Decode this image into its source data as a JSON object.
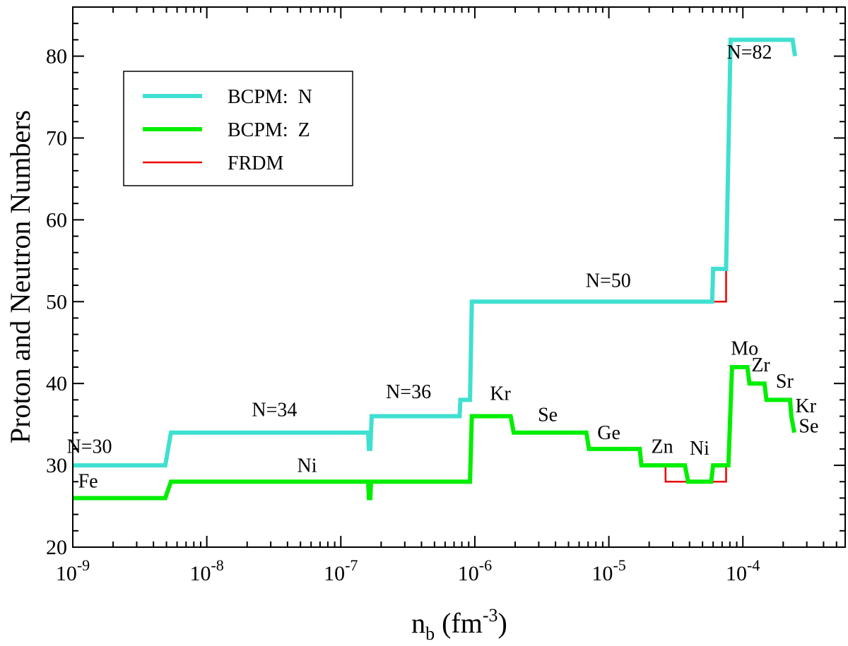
{
  "chart_data": {
    "type": "line",
    "title": "",
    "xlabel": {
      "base": "n",
      "sub": "b",
      "unit_pre": " (fm",
      "unit_sup": "-3",
      "unit_post": ")"
    },
    "ylabel": "Proton and Neutron Numbers",
    "x_scale": "log",
    "xlim": [
      1e-09,
      0.00058
    ],
    "ylim": [
      20,
      86
    ],
    "x_ticks": [
      {
        "value": 1e-09,
        "base": "10",
        "exp": "-9"
      },
      {
        "value": 1e-08,
        "base": "10",
        "exp": "-8"
      },
      {
        "value": 1e-07,
        "base": "10",
        "exp": "-7"
      },
      {
        "value": 1e-06,
        "base": "10",
        "exp": "-6"
      },
      {
        "value": 1e-05,
        "base": "10",
        "exp": "-5"
      },
      {
        "value": 0.0001,
        "base": "10",
        "exp": "-4"
      }
    ],
    "y_ticks": [
      20,
      30,
      40,
      50,
      60,
      70,
      80
    ],
    "grid": false,
    "legend": {
      "position": "top-left",
      "entries": [
        {
          "label": "BCPM:  N",
          "color": "#40E0D0"
        },
        {
          "label": "BCPM:  Z",
          "color": "#00EE00"
        },
        {
          "label": "FRDM",
          "color": "#EE0000"
        }
      ]
    },
    "series": [
      {
        "name": "FRDM",
        "color": "#EE0000",
        "width": "thin",
        "segments": [
          {
            "x": [
              5.9e-05,
              7.5e-05,
              7.5e-05,
              7.7e-05
            ],
            "y": [
              50,
              50,
              54,
              54
            ]
          },
          {
            "x": [
              2.65e-05,
              2.65e-05,
              7.5e-05,
              7.5e-05,
              7.9e-05
            ],
            "y": [
              30,
              28,
              28,
              30,
              30
            ]
          },
          {
            "x": [
              0.00022,
              0.00024
            ],
            "y": [
              82,
              82
            ]
          },
          {
            "x": [
              0.00022,
              0.00023,
              0.00023
            ],
            "y": [
              38,
              38,
              36
            ]
          }
        ]
      },
      {
        "name": "BCPM:  N",
        "color": "#40E0D0",
        "width": "thick",
        "segments": [
          {
            "x": [
              1e-09,
              4.9e-09,
              5.4e-09,
              1.6e-07,
              1.62e-07,
              1.66e-07,
              1.7e-07,
              7.7e-07,
              7.8e-07,
              9.2e-07,
              9.5e-07,
              5.9e-05,
              6e-05,
              7.3e-05,
              7.5e-05,
              8.1e-05,
              0.000235,
              0.000245
            ],
            "y": [
              30,
              30,
              34,
              34,
              32,
              32,
              36,
              36,
              38,
              38,
              50,
              50,
              54,
              54,
              54,
              82,
              82,
              80
            ]
          }
        ]
      },
      {
        "name": "BCPM:  Z",
        "color": "#00EE00",
        "width": "thick",
        "segments": [
          {
            "x": [
              1e-09,
              4.9e-09,
              5.4e-09,
              1.6e-07,
              1.62e-07,
              1.66e-07,
              1.68e-07,
              9.2e-07,
              9.5e-07,
              1.85e-06,
              1.95e-06,
              6.8e-06,
              7.1e-06,
              1.7e-05,
              1.75e-05,
              3.7e-05,
              3.9e-05,
              5.8e-05,
              6e-05,
              7.8e-05,
              8.3e-05,
              0.000108,
              0.000112,
              0.000145,
              0.00015,
              0.000225,
              0.00023,
              0.000242
            ],
            "y": [
              26,
              26,
              28,
              28,
              26,
              26,
              28,
              28,
              36,
              36,
              34,
              34,
              32,
              32,
              30,
              30,
              28,
              28,
              30,
              30,
              42,
              42,
              40,
              40,
              38,
              38,
              36,
              34
            ]
          }
        ]
      }
    ],
    "annotations": [
      {
        "text": "N=30",
        "x": 1.33e-09,
        "y": 31.5
      },
      {
        "text": "N=34",
        "x": 3.2e-08,
        "y": 36
      },
      {
        "text": "N=36",
        "x": 3.2e-07,
        "y": 38.2
      },
      {
        "text": "N=50",
        "x": 9.9e-06,
        "y": 51.8
      },
      {
        "text": "N=82",
        "x": 0.000112,
        "y": 79.7
      },
      {
        "text": "Fe",
        "x": 1.3e-09,
        "y": 27.3
      },
      {
        "text": "Ni",
        "x": 5.6e-08,
        "y": 29.2
      },
      {
        "text": "Kr",
        "x": 1.55e-06,
        "y": 38
      },
      {
        "text": "Se",
        "x": 3.5e-06,
        "y": 35.4
      },
      {
        "text": "Ge",
        "x": 1e-05,
        "y": 33.2
      },
      {
        "text": "Zn",
        "x": 2.5e-05,
        "y": 31.5
      },
      {
        "text": "Ni",
        "x": 4.75e-05,
        "y": 31.3
      },
      {
        "text": "Mo",
        "x": 0.000103,
        "y": 43.5
      },
      {
        "text": "Zr",
        "x": 0.000136,
        "y": 41.5
      },
      {
        "text": "Sr",
        "x": 0.000205,
        "y": 39.5
      },
      {
        "text": "Kr",
        "x": 0.000295,
        "y": 36.5
      },
      {
        "text": "Se",
        "x": 0.00031,
        "y": 34
      }
    ]
  }
}
